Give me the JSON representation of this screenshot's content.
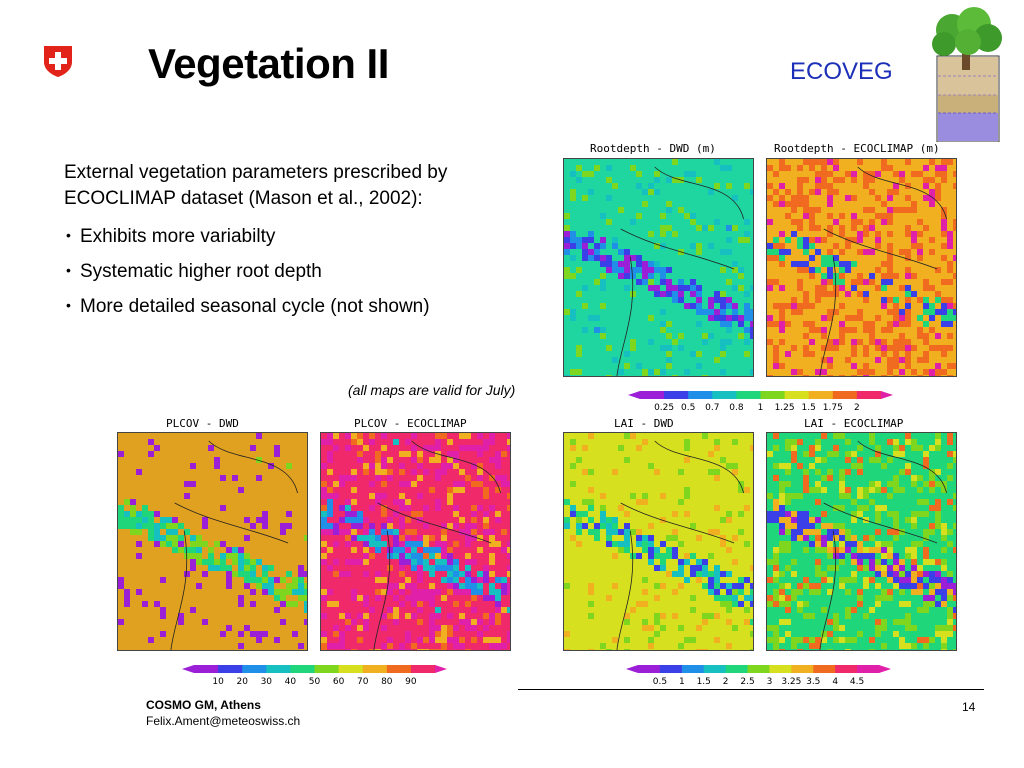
{
  "slide": {
    "title": "Vegetation II",
    "brand": "ECOVEG",
    "intro": "External vegetation parameters prescribed by ECOCLIMAP dataset (Mason et al., 2002):",
    "bullets": [
      "Exhibits more variabilty",
      "Systematic higher root depth",
      "More detailed seasonal cycle (not shown)"
    ],
    "note": "(all maps are valid for July)"
  },
  "maps": {
    "root_dwd": "Rootdepth - DWD (m)",
    "root_eco": "Rootdepth - ECOCLIMAP (m)",
    "plcov_dwd": "PLCOV - DWD",
    "plcov_eco": "PLCOV - ECOCLIMAP",
    "lai_dwd": "LAI - DWD",
    "lai_eco": "LAI - ECOCLIMAP"
  },
  "colorbars": {
    "root": [
      "0.25",
      "0.5",
      "0.7",
      "0.8",
      "1",
      "1.25",
      "1.5",
      "1.75",
      "2"
    ],
    "plcov": [
      "10",
      "20",
      "30",
      "40",
      "50",
      "60",
      "70",
      "80",
      "90"
    ],
    "lai": [
      "0.5",
      "1",
      "1.5",
      "2",
      "2.5",
      "3",
      "3.25",
      "3.5",
      "4",
      "4.5"
    ],
    "colors": [
      "#9b1fd6",
      "#3a3fe8",
      "#1f8fe8",
      "#17c0c0",
      "#1fd67a",
      "#7ed61f",
      "#d6e01f",
      "#f0b020",
      "#f06a20",
      "#f02a6a",
      "#e020a8"
    ]
  },
  "footer": {
    "org": "COSMO GM, Athens",
    "email": "Felix.Ament@meteoswiss.ch",
    "page": "14"
  },
  "icons": [
    "swiss-flag-icon",
    "tree-soil-icon"
  ]
}
